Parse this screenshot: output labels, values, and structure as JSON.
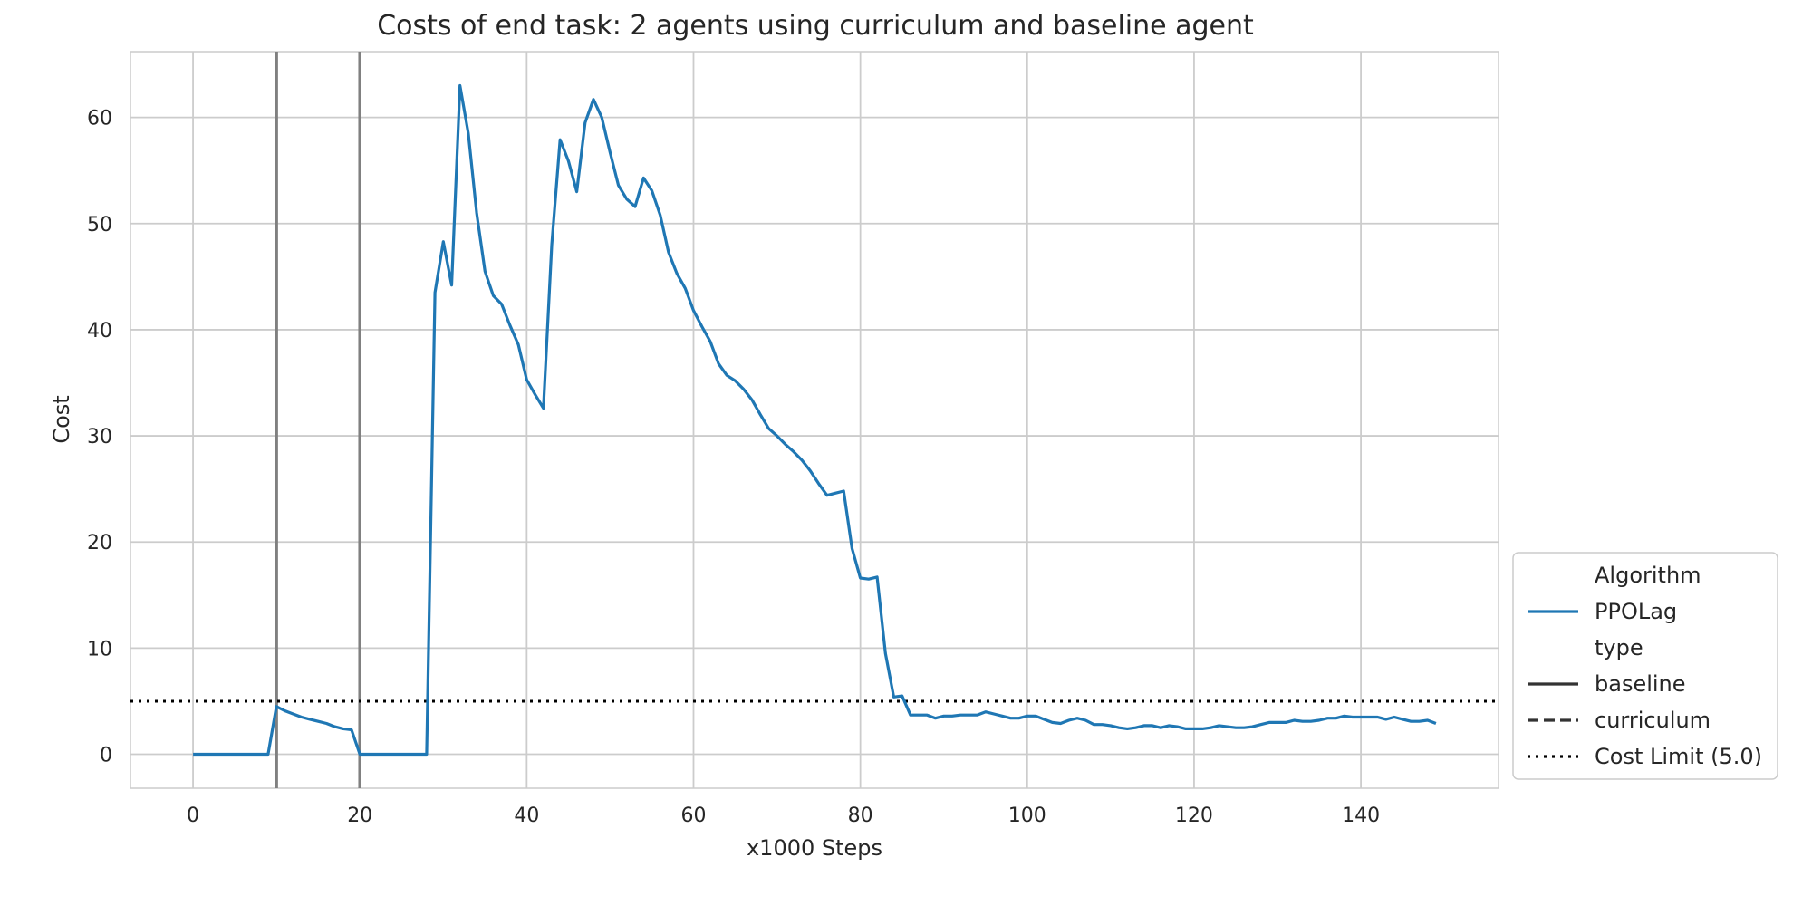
{
  "chart_data": {
    "type": "line",
    "title": "Costs of end task: 2 agents using curriculum and baseline agent",
    "xlabel": "x1000 Steps",
    "ylabel": "Cost",
    "xlim": [
      -7.5,
      156.5
    ],
    "ylim": [
      -3.2,
      66.2
    ],
    "x_ticks": [
      0,
      20,
      40,
      60,
      80,
      100,
      120,
      140
    ],
    "y_ticks": [
      0,
      10,
      20,
      30,
      40,
      50,
      60
    ],
    "grid": true,
    "legend_position": "lower-right-outside",
    "colors": {
      "series": "#1f77b4",
      "vertical_lines": "#808080",
      "cost_limit": "#000000",
      "grid": "#cccccc"
    },
    "vertical_lines_x": [
      10,
      20
    ],
    "cost_limit": 5.0,
    "series": [
      {
        "name": "PPOLag",
        "type": "baseline",
        "x": [
          0,
          1,
          2,
          3,
          4,
          5,
          6,
          7,
          8,
          9,
          10,
          11,
          12,
          13,
          14,
          15,
          16,
          17,
          18,
          19,
          20,
          21,
          22,
          23,
          24,
          25,
          26,
          27,
          28,
          29,
          30,
          31,
          32,
          33,
          34,
          35,
          36,
          37,
          38,
          39,
          40,
          41,
          42,
          43,
          44,
          45,
          46,
          47,
          48,
          49,
          50,
          51,
          52,
          53,
          54,
          55,
          56,
          57,
          58,
          59,
          60,
          61,
          62,
          63,
          64,
          65,
          66,
          67,
          68,
          69,
          70,
          71,
          72,
          73,
          74,
          75,
          76,
          77,
          78,
          79,
          80,
          81,
          82,
          83,
          84,
          85,
          86,
          87,
          88,
          89,
          90,
          91,
          92,
          93,
          94,
          95,
          96,
          97,
          98,
          99,
          100,
          101,
          102,
          103,
          104,
          105,
          106,
          107,
          108,
          109,
          110,
          111,
          112,
          113,
          114,
          115,
          116,
          117,
          118,
          119,
          120,
          121,
          122,
          123,
          124,
          125,
          126,
          127,
          128,
          129,
          130,
          131,
          132,
          133,
          134,
          135,
          136,
          137,
          138,
          139,
          140,
          141,
          142,
          143,
          144,
          145,
          146,
          147,
          148,
          149
        ],
        "y": [
          0,
          0,
          0,
          0,
          0,
          0,
          0,
          0,
          0,
          0,
          4.5,
          4.1,
          3.8,
          3.5,
          3.3,
          3.1,
          2.9,
          2.6,
          2.4,
          2.3,
          0,
          0,
          0,
          0,
          0,
          0,
          0,
          0,
          0,
          43.5,
          48.3,
          44.2,
          63.0,
          58.5,
          51.0,
          45.5,
          43.2,
          42.4,
          40.4,
          38.6,
          35.3,
          33.9,
          32.6,
          48.0,
          57.9,
          55.9,
          53.0,
          59.5,
          61.7,
          60.0,
          56.7,
          53.6,
          52.3,
          51.6,
          54.3,
          53.1,
          50.8,
          47.3,
          45.3,
          43.9,
          41.8,
          40.3,
          38.9,
          36.8,
          35.7,
          35.2,
          34.4,
          33.4,
          32.0,
          30.7,
          30.0,
          29.2,
          28.5,
          27.7,
          26.7,
          25.5,
          24.4,
          24.6,
          24.8,
          19.4,
          16.6,
          16.5,
          16.7,
          9.5,
          5.4,
          5.5,
          3.7,
          3.7,
          3.7,
          3.4,
          3.6,
          3.6,
          3.7,
          3.7,
          3.7,
          4.0,
          3.8,
          3.6,
          3.4,
          3.4,
          3.6,
          3.6,
          3.3,
          3.0,
          2.9,
          3.2,
          3.4,
          3.2,
          2.8,
          2.8,
          2.7,
          2.5,
          2.4,
          2.5,
          2.7,
          2.7,
          2.5,
          2.7,
          2.6,
          2.4,
          2.4,
          2.4,
          2.5,
          2.7,
          2.6,
          2.5,
          2.5,
          2.6,
          2.8,
          3.0,
          3.0,
          3.0,
          3.2,
          3.1,
          3.1,
          3.2,
          3.4,
          3.4,
          3.6,
          3.5,
          3.5,
          3.5,
          3.5,
          3.3,
          3.5,
          3.3,
          3.1,
          3.1,
          3.2,
          2.9
        ]
      }
    ],
    "legend": {
      "entries": [
        {
          "label": "Algorithm",
          "style": "header"
        },
        {
          "label": "PPOLag",
          "style": "solid-blue"
        },
        {
          "label": "type",
          "style": "header"
        },
        {
          "label": "baseline",
          "style": "solid"
        },
        {
          "label": "curriculum",
          "style": "dashed"
        },
        {
          "label": "Cost Limit (5.0)",
          "style": "dotted"
        }
      ]
    }
  }
}
